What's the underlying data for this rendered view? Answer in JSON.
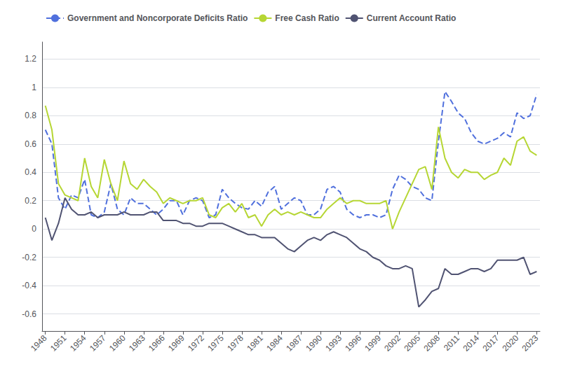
{
  "chart_data": {
    "type": "line",
    "x": [
      1948,
      1949,
      1950,
      1951,
      1952,
      1953,
      1954,
      1955,
      1956,
      1957,
      1958,
      1959,
      1960,
      1961,
      1962,
      1963,
      1964,
      1965,
      1966,
      1967,
      1968,
      1969,
      1970,
      1971,
      1972,
      1973,
      1974,
      1975,
      1976,
      1977,
      1978,
      1979,
      1980,
      1981,
      1982,
      1983,
      1984,
      1985,
      1986,
      1987,
      1988,
      1989,
      1990,
      1991,
      1992,
      1993,
      1994,
      1995,
      1996,
      1997,
      1998,
      1999,
      2000,
      2001,
      2002,
      2003,
      2004,
      2005,
      2006,
      2007,
      2008,
      2009,
      2010,
      2011,
      2012,
      2013,
      2014,
      2015,
      2016,
      2017,
      2018,
      2019,
      2020,
      2021,
      2022,
      2023
    ],
    "series": [
      {
        "name": "Government and Noncorporate Deficits Ratio",
        "line_style": "dashed",
        "values": [
          0.7,
          0.6,
          0.22,
          0.14,
          0.24,
          0.22,
          0.35,
          0.1,
          0.08,
          0.12,
          0.32,
          0.14,
          0.1,
          0.22,
          0.18,
          0.18,
          0.14,
          0.1,
          0.14,
          0.2,
          0.2,
          0.1,
          0.2,
          0.22,
          0.2,
          0.08,
          0.1,
          0.28,
          0.22,
          0.18,
          0.15,
          0.14,
          0.2,
          0.16,
          0.26,
          0.3,
          0.14,
          0.18,
          0.22,
          0.2,
          0.1,
          0.1,
          0.14,
          0.28,
          0.3,
          0.26,
          0.14,
          0.1,
          0.08,
          0.1,
          0.1,
          0.08,
          0.1,
          0.28,
          0.38,
          0.35,
          0.3,
          0.28,
          0.22,
          0.2,
          0.62,
          0.97,
          0.9,
          0.82,
          0.78,
          0.68,
          0.62,
          0.6,
          0.62,
          0.64,
          0.68,
          0.65,
          0.82,
          0.78,
          0.8,
          0.95
        ]
      },
      {
        "name": "Free Cash Ratio",
        "line_style": "solid",
        "values": [
          0.87,
          0.7,
          0.32,
          0.24,
          0.22,
          0.2,
          0.5,
          0.3,
          0.22,
          0.49,
          0.32,
          0.2,
          0.48,
          0.32,
          0.28,
          0.35,
          0.3,
          0.26,
          0.18,
          0.22,
          0.2,
          0.18,
          0.2,
          0.2,
          0.22,
          0.1,
          0.08,
          0.15,
          0.18,
          0.12,
          0.18,
          0.08,
          0.1,
          0.02,
          0.1,
          0.14,
          0.1,
          0.12,
          0.1,
          0.12,
          0.1,
          0.08,
          0.08,
          0.14,
          0.18,
          0.22,
          0.18,
          0.2,
          0.2,
          0.18,
          0.18,
          0.18,
          0.2,
          0.0,
          0.12,
          0.22,
          0.32,
          0.42,
          0.44,
          0.28,
          0.72,
          0.5,
          0.4,
          0.36,
          0.42,
          0.4,
          0.4,
          0.35,
          0.38,
          0.4,
          0.5,
          0.45,
          0.62,
          0.65,
          0.55,
          0.52
        ]
      },
      {
        "name": "Current Account Ratio",
        "line_style": "solid",
        "values": [
          0.08,
          -0.08,
          0.04,
          0.22,
          0.14,
          0.1,
          0.1,
          0.12,
          0.08,
          0.1,
          0.1,
          0.1,
          0.12,
          0.1,
          0.1,
          0.1,
          0.12,
          0.12,
          0.06,
          0.06,
          0.06,
          0.04,
          0.04,
          0.02,
          0.02,
          0.04,
          0.04,
          0.04,
          0.02,
          0.0,
          -0.02,
          -0.04,
          -0.04,
          -0.06,
          -0.06,
          -0.06,
          -0.1,
          -0.14,
          -0.16,
          -0.12,
          -0.08,
          -0.06,
          -0.08,
          -0.04,
          -0.02,
          -0.04,
          -0.06,
          -0.1,
          -0.14,
          -0.16,
          -0.2,
          -0.22,
          -0.26,
          -0.28,
          -0.28,
          -0.26,
          -0.28,
          -0.55,
          -0.5,
          -0.44,
          -0.42,
          -0.28,
          -0.32,
          -0.32,
          -0.3,
          -0.28,
          -0.28,
          -0.3,
          -0.28,
          -0.22,
          -0.22,
          -0.22,
          -0.22,
          -0.2,
          -0.32,
          -0.3
        ]
      }
    ],
    "xlim": [
      1947.5,
      2023.5
    ],
    "xticks": [
      1948,
      1951,
      1954,
      1957,
      1960,
      1963,
      1966,
      1969,
      1972,
      1975,
      1978,
      1981,
      1984,
      1987,
      1990,
      1993,
      1996,
      1999,
      2002,
      2005,
      2008,
      2011,
      2014,
      2017,
      2020,
      2023
    ],
    "ylim": [
      -0.72,
      1.32
    ],
    "yticks": [
      -0.6,
      -0.4,
      -0.2,
      0,
      0.2,
      0.4,
      0.6,
      0.8,
      1,
      1.2
    ],
    "grid": true,
    "legend": "upper left"
  }
}
